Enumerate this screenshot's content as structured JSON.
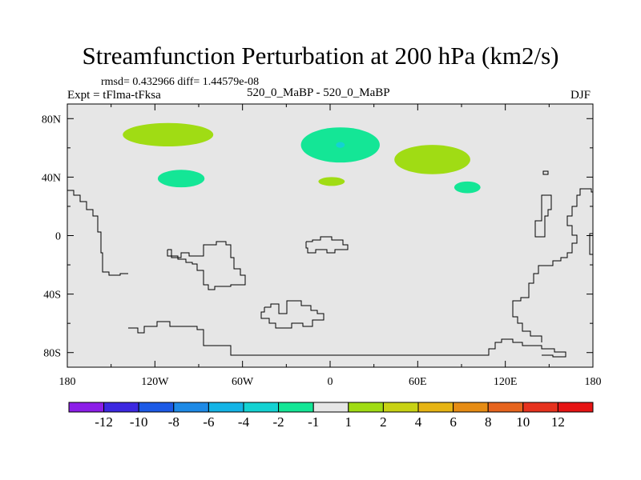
{
  "title": "Streamfunction Perturbation at 200 hPa (km2/s)",
  "stats_line": "rmsd= 0.432966  diff= 1.44579e-08",
  "experiment_label": "Expt = tFlma-tFksa",
  "case_label": "520_0_MaBP - 520_0_MaBP",
  "season": "DJF",
  "chart_data": {
    "type": "contour-map",
    "title": "Streamfunction Perturbation at 200 hPa (km2/s)",
    "projection": "cylindrical-equidistant",
    "xlim": [
      -180,
      180
    ],
    "ylim": [
      -90,
      90
    ],
    "x_ticks": [
      {
        "value": -180,
        "label": "180"
      },
      {
        "value": -120,
        "label": "120W"
      },
      {
        "value": -60,
        "label": "60W"
      },
      {
        "value": 0,
        "label": "0"
      },
      {
        "value": 60,
        "label": "60E"
      },
      {
        "value": 120,
        "label": "120E"
      },
      {
        "value": 180,
        "label": "180"
      }
    ],
    "y_ticks": [
      {
        "value": 80,
        "label": "80N"
      },
      {
        "value": 40,
        "label": "40N"
      },
      {
        "value": 0,
        "label": "0"
      },
      {
        "value": -40,
        "label": "40S"
      },
      {
        "value": -80,
        "label": "80S"
      }
    ],
    "background_class": "-1 to 1",
    "colorbar": {
      "levels": [
        "-12",
        "-10",
        "-8",
        "-6",
        "-4",
        "-2",
        "-1",
        "1",
        "2",
        "4",
        "6",
        "8",
        "10",
        "12"
      ],
      "colors": [
        "#8c1ee8",
        "#3c28e0",
        "#1c5ae6",
        "#1e8ae6",
        "#14b4e6",
        "#14d2d2",
        "#14e696",
        "#e6e6e6",
        "#a0dc14",
        "#c8d214",
        "#e6b414",
        "#e68c14",
        "#e6641e",
        "#e6321e",
        "#e61414"
      ]
    },
    "regions": [
      {
        "name": "anomaly-nw-pacific",
        "class": "1 to 2",
        "color": "#a0dc14",
        "center": [
          -111,
          69
        ],
        "radius": [
          31,
          8
        ]
      },
      {
        "name": "anomaly-north-atlantic",
        "class": "-2 to -1",
        "color": "#14e696",
        "center": [
          7,
          62
        ],
        "radius": [
          27,
          12
        ]
      },
      {
        "name": "anomaly-north-atlantic-core",
        "class": "-4 to -2",
        "color": "#14d2d2",
        "center": [
          7,
          62
        ],
        "radius": [
          3,
          2
        ]
      },
      {
        "name": "anomaly-central-asia",
        "class": "1 to 2",
        "color": "#a0dc14",
        "center": [
          70,
          52
        ],
        "radius": [
          26,
          10
        ]
      },
      {
        "name": "anomaly-east-pacific",
        "class": "-2 to -1",
        "color": "#14e696",
        "center": [
          -102,
          39
        ],
        "radius": [
          16,
          6
        ]
      },
      {
        "name": "anomaly-mediterranean",
        "class": "1 to 2",
        "color": "#a0dc14",
        "center": [
          1,
          37
        ],
        "radius": [
          9,
          3
        ]
      },
      {
        "name": "anomaly-east-asia",
        "class": "-2 to -1",
        "color": "#14e696",
        "center": [
          94,
          33
        ],
        "radius": [
          9,
          4
        ]
      }
    ]
  }
}
